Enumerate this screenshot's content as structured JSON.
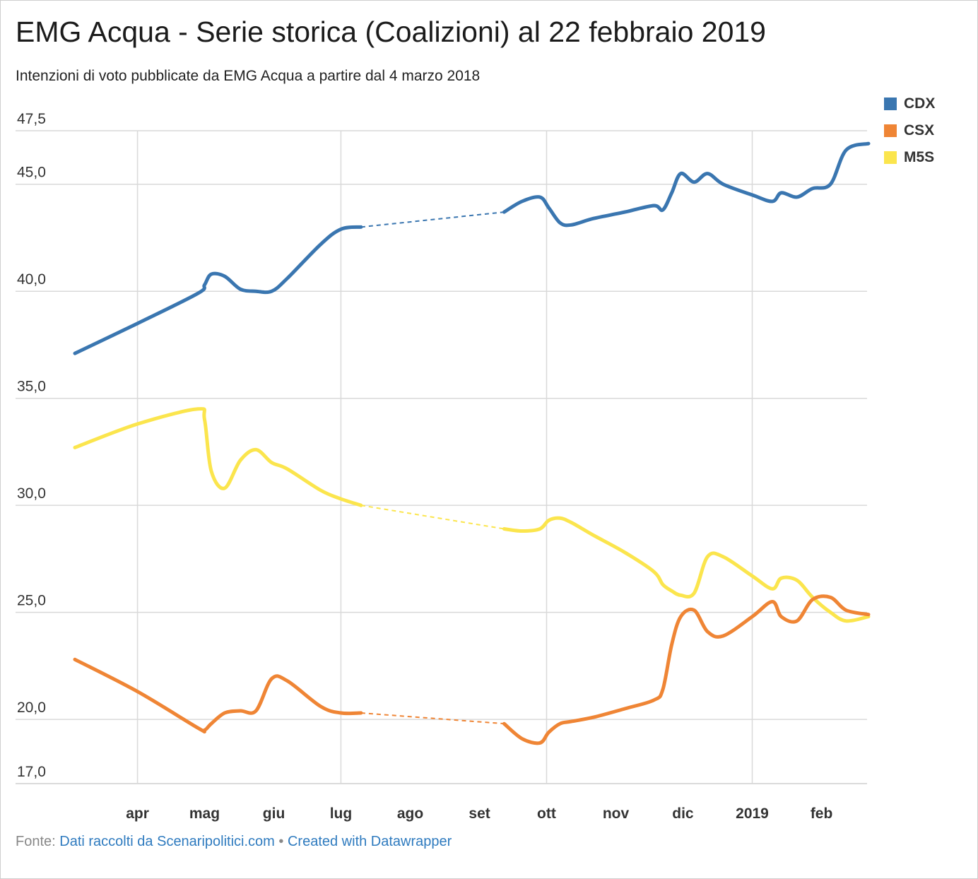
{
  "title": "EMG Acqua - Serie storica (Coalizioni) al 22 febbraio 2019",
  "subtitle": "Intenzioni di voto pubblicate da EMG Acqua a partire dal 4 marzo 2018",
  "footer": {
    "source_prefix": "Fonte:",
    "source_text": "Dati raccolti da Scenaripolitici.com",
    "separator": "•",
    "credit": "Created with Datawrapper"
  },
  "colors": {
    "CDX": "#3a76b0",
    "CSX": "#ef8535",
    "M5S": "#fbe54d",
    "grid": "#d9d9d9"
  },
  "chart_data": {
    "type": "line",
    "ylim": [
      17.0,
      47.5
    ],
    "yticks": [
      "47,5",
      "45,0",
      "40,0",
      "35,0",
      "30,0",
      "25,0",
      "20,0",
      "17,0"
    ],
    "ytick_values": [
      47.5,
      45.0,
      40.0,
      35.0,
      30.0,
      25.0,
      20.0,
      17.0
    ],
    "xlim": [
      "2018-03-04",
      "2019-02-22"
    ],
    "xticks": [
      {
        "label": "apr",
        "date": "2018-04-01"
      },
      {
        "label": "mag",
        "date": "2018-05-01"
      },
      {
        "label": "giu",
        "date": "2018-06-01"
      },
      {
        "label": "lug",
        "date": "2018-07-01"
      },
      {
        "label": "ago",
        "date": "2018-08-01"
      },
      {
        "label": "set",
        "date": "2018-09-01"
      },
      {
        "label": "ott",
        "date": "2018-10-01"
      },
      {
        "label": "nov",
        "date": "2018-11-01"
      },
      {
        "label": "dic",
        "date": "2018-12-01"
      },
      {
        "label": "2019",
        "date": "2019-01-01"
      },
      {
        "label": "feb",
        "date": "2019-02-01"
      }
    ],
    "vgrid_dates": [
      "2018-04-01",
      "2018-07-01",
      "2018-10-01",
      "2019-01-01"
    ],
    "gap": [
      "2018-07-10",
      "2018-09-12"
    ],
    "legend": [
      "CDX",
      "CSX",
      "M5S"
    ],
    "series": [
      {
        "name": "CDX",
        "points": [
          [
            "2018-03-04",
            37.1
          ],
          [
            "2018-04-01",
            38.5
          ],
          [
            "2018-04-28",
            39.9
          ],
          [
            "2018-05-01",
            40.3
          ],
          [
            "2018-05-04",
            40.8
          ],
          [
            "2018-05-10",
            40.7
          ],
          [
            "2018-05-17",
            40.1
          ],
          [
            "2018-05-24",
            40.0
          ],
          [
            "2018-05-31",
            40.0
          ],
          [
            "2018-06-07",
            40.6
          ],
          [
            "2018-06-22",
            42.2
          ],
          [
            "2018-07-01",
            42.9
          ],
          [
            "2018-07-10",
            43.0
          ],
          [
            "2018-09-12",
            43.7
          ],
          [
            "2018-09-20",
            44.2
          ],
          [
            "2018-09-28",
            44.4
          ],
          [
            "2018-10-02",
            43.9
          ],
          [
            "2018-10-07",
            43.2
          ],
          [
            "2018-10-12",
            43.1
          ],
          [
            "2018-10-22",
            43.4
          ],
          [
            "2018-11-05",
            43.7
          ],
          [
            "2018-11-18",
            44.0
          ],
          [
            "2018-11-22",
            43.8
          ],
          [
            "2018-11-26",
            44.6
          ],
          [
            "2018-11-30",
            45.5
          ],
          [
            "2018-12-06",
            45.1
          ],
          [
            "2018-12-12",
            45.5
          ],
          [
            "2018-12-19",
            45.0
          ],
          [
            "2019-01-01",
            44.5
          ],
          [
            "2019-01-10",
            44.2
          ],
          [
            "2019-01-14",
            44.6
          ],
          [
            "2019-01-21",
            44.4
          ],
          [
            "2019-01-28",
            44.8
          ],
          [
            "2019-02-05",
            45.0
          ],
          [
            "2019-02-12",
            46.6
          ],
          [
            "2019-02-22",
            46.9
          ]
        ]
      },
      {
        "name": "CSX",
        "points": [
          [
            "2018-03-04",
            22.8
          ],
          [
            "2018-04-01",
            21.3
          ],
          [
            "2018-04-28",
            19.6
          ],
          [
            "2018-05-01",
            19.5
          ],
          [
            "2018-05-04",
            19.8
          ],
          [
            "2018-05-10",
            20.3
          ],
          [
            "2018-05-17",
            20.4
          ],
          [
            "2018-05-24",
            20.4
          ],
          [
            "2018-05-31",
            21.9
          ],
          [
            "2018-06-07",
            21.8
          ],
          [
            "2018-06-22",
            20.6
          ],
          [
            "2018-07-01",
            20.3
          ],
          [
            "2018-07-10",
            20.3
          ],
          [
            "2018-09-12",
            19.8
          ],
          [
            "2018-09-20",
            19.1
          ],
          [
            "2018-09-28",
            18.9
          ],
          [
            "2018-10-02",
            19.4
          ],
          [
            "2018-10-07",
            19.8
          ],
          [
            "2018-10-12",
            19.9
          ],
          [
            "2018-10-22",
            20.1
          ],
          [
            "2018-11-05",
            20.5
          ],
          [
            "2018-11-18",
            20.9
          ],
          [
            "2018-11-22",
            21.4
          ],
          [
            "2018-11-26",
            23.5
          ],
          [
            "2018-11-30",
            24.8
          ],
          [
            "2018-12-06",
            25.1
          ],
          [
            "2018-12-12",
            24.1
          ],
          [
            "2018-12-19",
            23.9
          ],
          [
            "2019-01-01",
            24.8
          ],
          [
            "2019-01-10",
            25.5
          ],
          [
            "2019-01-14",
            24.8
          ],
          [
            "2019-01-21",
            24.6
          ],
          [
            "2019-01-28",
            25.6
          ],
          [
            "2019-02-05",
            25.7
          ],
          [
            "2019-02-12",
            25.1
          ],
          [
            "2019-02-22",
            24.9
          ]
        ]
      },
      {
        "name": "M5S",
        "points": [
          [
            "2018-03-04",
            32.7
          ],
          [
            "2018-04-01",
            33.8
          ],
          [
            "2018-04-28",
            34.5
          ],
          [
            "2018-05-01",
            34.0
          ],
          [
            "2018-05-04",
            31.6
          ],
          [
            "2018-05-10",
            30.8
          ],
          [
            "2018-05-17",
            32.1
          ],
          [
            "2018-05-24",
            32.6
          ],
          [
            "2018-05-31",
            32.0
          ],
          [
            "2018-06-07",
            31.7
          ],
          [
            "2018-06-22",
            30.7
          ],
          [
            "2018-07-01",
            30.3
          ],
          [
            "2018-07-10",
            30.0
          ],
          [
            "2018-09-12",
            28.9
          ],
          [
            "2018-09-20",
            28.8
          ],
          [
            "2018-09-28",
            28.9
          ],
          [
            "2018-10-02",
            29.3
          ],
          [
            "2018-10-07",
            29.4
          ],
          [
            "2018-10-12",
            29.2
          ],
          [
            "2018-10-22",
            28.6
          ],
          [
            "2018-11-05",
            27.8
          ],
          [
            "2018-11-18",
            26.9
          ],
          [
            "2018-11-22",
            26.3
          ],
          [
            "2018-11-26",
            26.0
          ],
          [
            "2018-11-30",
            25.8
          ],
          [
            "2018-12-06",
            25.9
          ],
          [
            "2018-12-12",
            27.6
          ],
          [
            "2018-12-19",
            27.6
          ],
          [
            "2019-01-01",
            26.7
          ],
          [
            "2019-01-10",
            26.1
          ],
          [
            "2019-01-14",
            26.6
          ],
          [
            "2019-01-21",
            26.5
          ],
          [
            "2019-01-28",
            25.7
          ],
          [
            "2019-02-05",
            25.0
          ],
          [
            "2019-02-12",
            24.6
          ],
          [
            "2019-02-22",
            24.8
          ]
        ]
      }
    ]
  }
}
